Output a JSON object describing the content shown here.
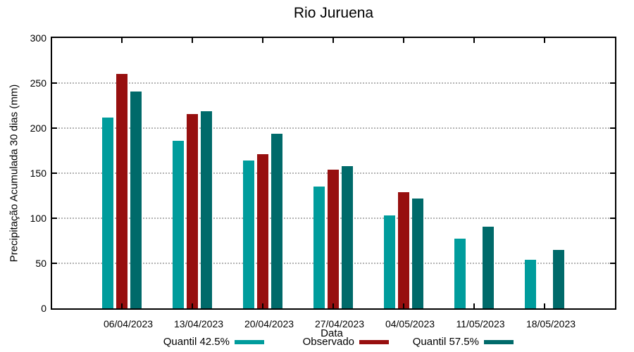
{
  "chart_data": {
    "type": "bar",
    "title": "Rio Juruena",
    "xlabel": "Data",
    "ylabel": "Precipitação Acumulada 30 dias (mm)",
    "ylim": [
      0,
      300
    ],
    "yticks": [
      0,
      50,
      100,
      150,
      200,
      250,
      300
    ],
    "grid": "horizontal-dotted",
    "grid_color": "#b3b3b3",
    "axis_color": "#000000",
    "legend_position": "bottom",
    "categories": [
      "06/04/2023",
      "13/04/2023",
      "20/04/2023",
      "27/04/2023",
      "04/05/2023",
      "11/05/2023",
      "18/05/2023"
    ],
    "series": [
      {
        "name": "Quantil 42.5%",
        "color": "#009C9C",
        "values": [
          212,
          186,
          164,
          135,
          103,
          77,
          54
        ]
      },
      {
        "name": "Observado",
        "color": "#970F0F",
        "values": [
          260,
          216,
          171,
          154,
          129,
          null,
          null
        ]
      },
      {
        "name": "Quantil 57.5%",
        "color": "#006A6A",
        "values": [
          241,
          219,
          194,
          158,
          122,
          91,
          65
        ]
      }
    ]
  }
}
